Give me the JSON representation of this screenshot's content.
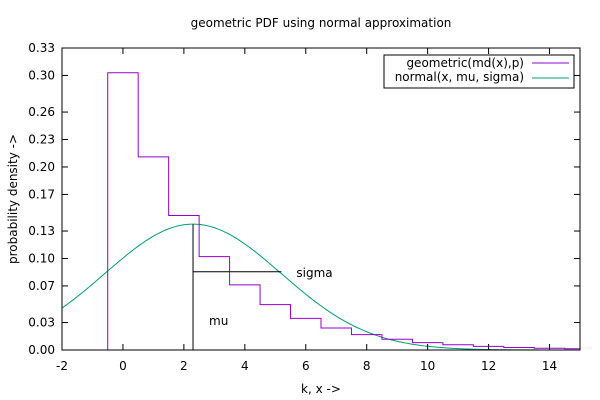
{
  "chart_data": {
    "type": "line",
    "title": "geometric PDF using normal approximation",
    "xlabel": "k, x ->",
    "ylabel": "probability density ->",
    "xlim": [
      -2,
      15
    ],
    "ylim": [
      0,
      0.33
    ],
    "x_ticks": [
      -2,
      0,
      2,
      4,
      6,
      8,
      10,
      12,
      14
    ],
    "y_ticks": [
      0.0,
      0.03,
      0.07,
      0.1,
      0.13,
      0.17,
      0.2,
      0.23,
      0.26,
      0.3,
      0.33
    ],
    "grid": false,
    "legend_position": "top-right",
    "series": [
      {
        "name": "geometric(md(x),p)",
        "kind": "step",
        "color": "#9400d3",
        "k": [
          0,
          1,
          2,
          3,
          4,
          5,
          6,
          7,
          8,
          9,
          10,
          11,
          12,
          13,
          14,
          15
        ],
        "values": [
          0.303,
          0.211,
          0.147,
          0.102,
          0.0711,
          0.0496,
          0.0345,
          0.0241,
          0.0168,
          0.0117,
          0.0081,
          0.0057,
          0.004,
          0.0028,
          0.0019,
          0.0013
        ]
      },
      {
        "name": "normal(x, mu, sigma)",
        "kind": "curve",
        "color": "#009e73",
        "mu": 2.3,
        "sigma": 2.9
      }
    ],
    "annotations": {
      "mu_label": "mu",
      "sigma_label": "sigma",
      "mu_x": 2.3,
      "mu_line_top": 0.1375,
      "sigma_y": 0.0855,
      "sigma_x_end": 5.2
    }
  }
}
